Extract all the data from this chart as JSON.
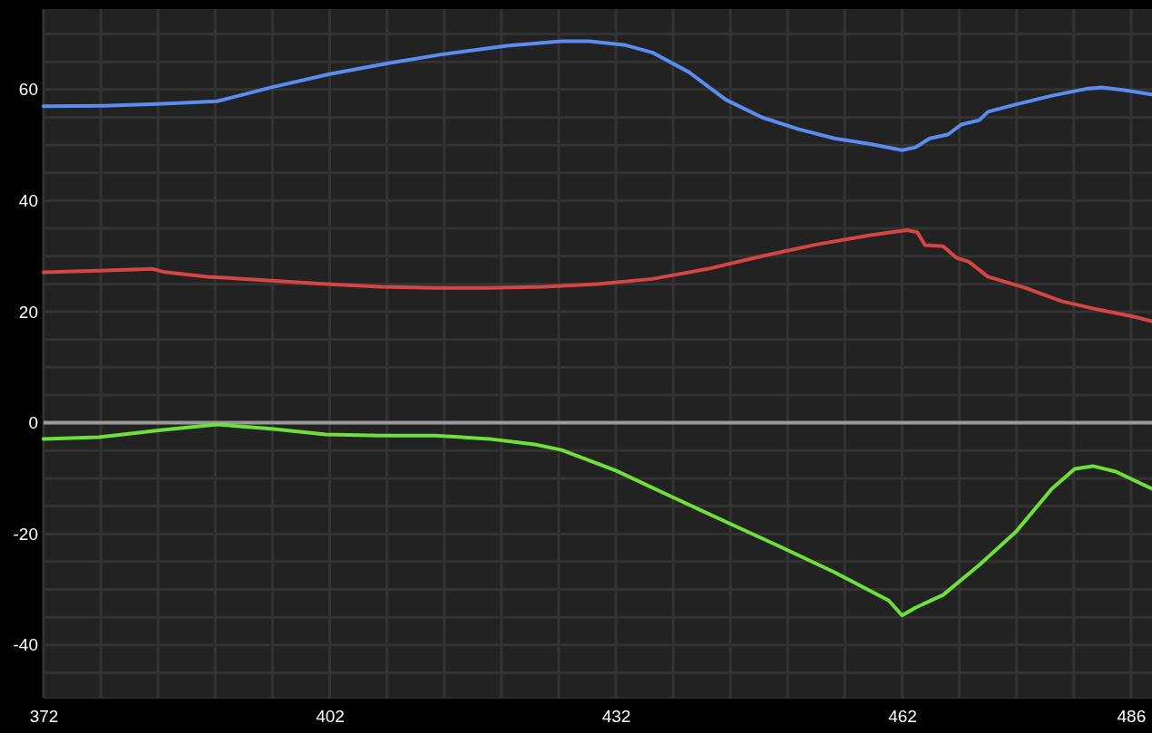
{
  "chart_data": {
    "type": "line",
    "xlim": [
      372,
      488.2
    ],
    "ylim": [
      -49.5,
      74.5
    ],
    "xticks": [
      372,
      {
        "value": 378,
        "label": null
      },
      {
        "value": 384,
        "label": null
      },
      {
        "value": 390,
        "label": null
      },
      {
        "value": 396,
        "label": null
      },
      402,
      {
        "value": 408,
        "label": null
      },
      {
        "value": 414,
        "label": null
      },
      {
        "value": 420,
        "label": null
      },
      {
        "value": 426,
        "label": null
      },
      432,
      {
        "value": 438,
        "label": null
      },
      {
        "value": 444,
        "label": null
      },
      {
        "value": 450,
        "label": null
      },
      {
        "value": 456,
        "label": null
      },
      462,
      {
        "value": 468,
        "label": null
      },
      {
        "value": 474,
        "label": null
      },
      {
        "value": 480,
        "label": null
      },
      486
    ],
    "yticks": [
      {
        "value": -45,
        "label": null
      },
      -40,
      {
        "value": -35,
        "label": null
      },
      {
        "value": -30,
        "label": null
      },
      {
        "value": -25,
        "label": null
      },
      -20,
      {
        "value": -15,
        "label": null
      },
      {
        "value": -10,
        "label": null
      },
      {
        "value": -5,
        "label": null
      },
      0,
      {
        "value": 5,
        "label": null
      },
      {
        "value": 10,
        "label": null
      },
      {
        "value": 15,
        "label": null
      },
      20,
      {
        "value": 25,
        "label": null
      },
      {
        "value": 30,
        "label": null
      },
      {
        "value": 35,
        "label": null
      },
      40,
      {
        "value": 45,
        "label": null
      },
      {
        "value": 50,
        "label": null
      },
      {
        "value": 55,
        "label": null
      },
      60,
      {
        "value": 65,
        "label": null
      },
      {
        "value": 70,
        "label": null
      }
    ],
    "grid": true,
    "marker": "none",
    "line_style": "solid",
    "ref_lines": [
      {
        "axis": "y",
        "value": 0,
        "label": null,
        "color": "#9a9a9a"
      }
    ],
    "series": [
      {
        "color": "#5b8def",
        "x": [
          372,
          378.3,
          384,
          390.2,
          395.9,
          402,
          408.3,
          414,
          420.6,
          426.3,
          429.2,
          433,
          435.8,
          439.7,
          443.5,
          447.3,
          451.1,
          454.9,
          458.7,
          462,
          463.4,
          464.9,
          466.8,
          468.2,
          470.1,
          471,
          473.9,
          477.7,
          481.5,
          482.9,
          485.3,
          488.2
        ],
        "values": [
          57,
          57.1,
          57.4,
          57.9,
          60.4,
          62.8,
          64.8,
          66.4,
          67.9,
          68.7,
          68.7,
          68,
          66.7,
          63.1,
          58.2,
          55,
          52.9,
          51.2,
          50.2,
          49.1,
          49.6,
          51.2,
          51.9,
          53.7,
          54.5,
          56,
          57.3,
          58.9,
          60.2,
          60.4,
          59.9,
          59.1
        ]
      },
      {
        "color": "#d64545",
        "x": [
          372,
          377.8,
          383.5,
          384.5,
          389.2,
          395.9,
          401.6,
          407.3,
          413,
          418.7,
          424.4,
          430.1,
          435.8,
          441.6,
          447.3,
          453,
          458.7,
          462.5,
          463.6,
          464.4,
          466.3,
          467.7,
          469,
          471,
          474.9,
          478.7,
          482.5,
          486.3,
          488.2
        ],
        "values": [
          27.1,
          27.4,
          27.7,
          27.2,
          26.3,
          25.6,
          25,
          24.5,
          24.3,
          24.3,
          24.5,
          25,
          25.9,
          27.7,
          30,
          32.1,
          33.8,
          34.7,
          34.3,
          32,
          31.8,
          29.7,
          29,
          26.3,
          24.3,
          21.9,
          20.4,
          19.1,
          18.3
        ]
      },
      {
        "color": "#6fe03a",
        "x": [
          372,
          377.8,
          384.5,
          390.2,
          395.9,
          401.6,
          407.3,
          413,
          418.7,
          423.5,
          426.3,
          432,
          437.7,
          443.5,
          449.2,
          454.9,
          460.6,
          462,
          463.4,
          466.3,
          470.1,
          473.9,
          477.7,
          480.1,
          482,
          484.4,
          488.2
        ],
        "values": [
          -2.9,
          -2.6,
          -1.3,
          -0.3,
          -1.1,
          -2.1,
          -2.3,
          -2.3,
          -2.9,
          -3.9,
          -4.9,
          -8.6,
          -13.2,
          -17.8,
          -22.3,
          -26.9,
          -32,
          -34.7,
          -33.3,
          -31,
          -25.6,
          -19.7,
          -11.9,
          -8.3,
          -7.8,
          -8.8,
          -11.9
        ]
      }
    ]
  }
}
